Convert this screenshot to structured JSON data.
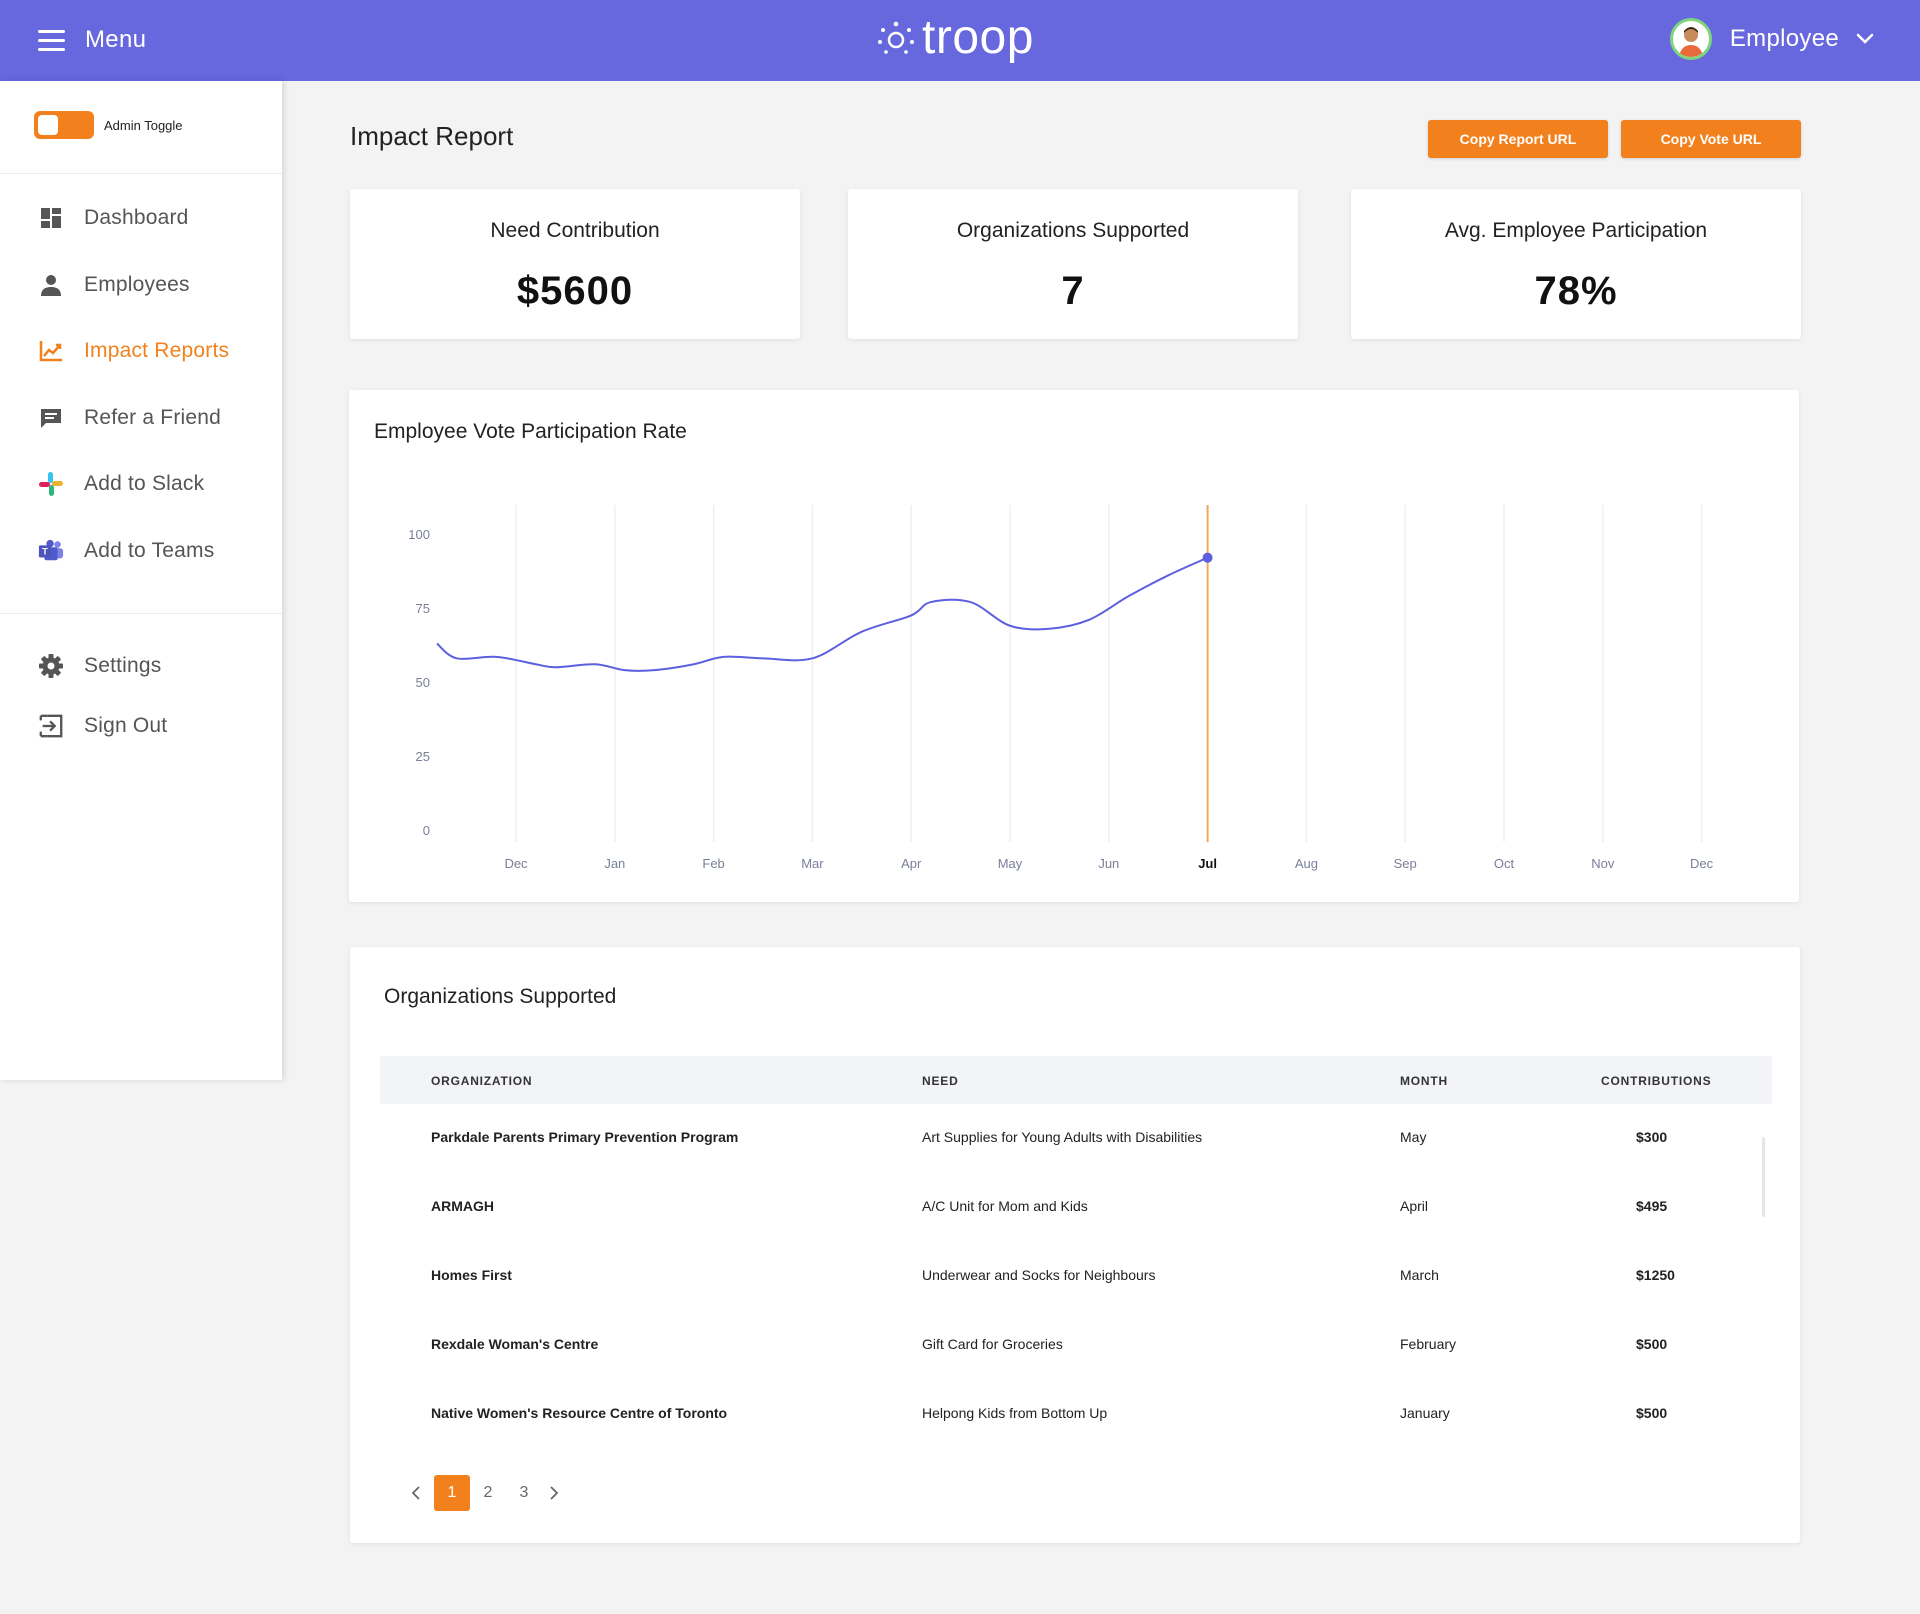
{
  "colors": {
    "header": "#6767de",
    "accent": "#f2811d",
    "line": "#5c5fe0"
  },
  "header": {
    "menu_label": "Menu",
    "logo_text": "troop",
    "user_label": "Employee",
    "icons": {
      "menu": "hamburger-icon",
      "user": "avatar",
      "dropdown": "chevron-down-icon"
    }
  },
  "sidebar": {
    "admin_toggle_label": "Admin Toggle",
    "admin_toggle_on": true,
    "items": [
      {
        "label": "Dashboard",
        "icon": "dashboard-icon"
      },
      {
        "label": "Employees",
        "icon": "person-icon"
      },
      {
        "label": "Impact Reports",
        "icon": "chart-line-icon",
        "active": true
      },
      {
        "label": "Refer a Friend",
        "icon": "chat-icon"
      },
      {
        "label": "Add to Slack",
        "icon": "slack-icon"
      },
      {
        "label": "Add to Teams",
        "icon": "teams-icon"
      },
      {
        "label": "Settings",
        "icon": "gear-icon"
      },
      {
        "label": "Sign Out",
        "icon": "sign-out-icon"
      }
    ]
  },
  "main": {
    "title": "Impact Report",
    "copy_report_url": "Copy Report URL",
    "copy_vote_url": "Copy Vote URL",
    "stats": [
      {
        "label": "Need Contribution",
        "value": "$5600"
      },
      {
        "label": "Organizations Supported",
        "value": "7"
      },
      {
        "label": "Avg. Employee Participation",
        "value": "78%"
      }
    ]
  },
  "chart_data": {
    "type": "line",
    "title": "Employee Vote Participation Rate",
    "xlabel": "",
    "ylabel": "",
    "categories": [
      "Dec",
      "Jan",
      "Feb",
      "Mar",
      "Apr",
      "May",
      "Jun",
      "Jul",
      "Aug",
      "Sep",
      "Oct",
      "Nov",
      "Dec"
    ],
    "highlight_category": "Jul",
    "y_ticks": [
      100,
      75,
      50,
      25,
      0
    ],
    "ylim": [
      0,
      100
    ],
    "grid": "vertical",
    "series": [
      {
        "x": [
          -0.8,
          -0.6,
          -0.2,
          0.2,
          0.4,
          0.8,
          1.1,
          1.4,
          1.8,
          2.1,
          2.5,
          3.0,
          3.5,
          4.0,
          4.2,
          4.6,
          5.0,
          5.4,
          5.8,
          6.2,
          6.6,
          7.0
        ],
        "values": [
          63,
          58,
          58.5,
          56,
          55,
          56,
          54,
          54,
          56,
          58.5,
          58,
          58,
          67,
          72.5,
          77,
          77,
          69,
          68,
          71,
          79,
          86,
          92
        ]
      }
    ]
  },
  "table": {
    "title": "Organizations Supported",
    "columns": [
      "ORGANIZATION",
      "NEED",
      "MONTH",
      "CONTRIBUTIONS"
    ],
    "rows": [
      {
        "org": "Parkdale Parents Primary Prevention Program",
        "need": "Art Supplies for Young Adults with Disabilities",
        "month": "May",
        "amount": "$300"
      },
      {
        "org": "ARMAGH",
        "need": "A/C Unit for Mom and Kids",
        "month": "April",
        "amount": "$495"
      },
      {
        "org": "Homes First",
        "need": "Underwear and Socks for Neighbours",
        "month": "March",
        "amount": "$1250"
      },
      {
        "org": "Rexdale Woman's Centre",
        "need": "Gift Card for Groceries",
        "month": "February",
        "amount": "$500"
      },
      {
        "org": "Native Women's Resource Centre of Toronto",
        "need": "Helpong Kids from Bottom Up",
        "month": "January",
        "amount": "$500"
      }
    ],
    "pagination": {
      "pages": [
        "1",
        "2",
        "3"
      ],
      "current": "1"
    }
  }
}
